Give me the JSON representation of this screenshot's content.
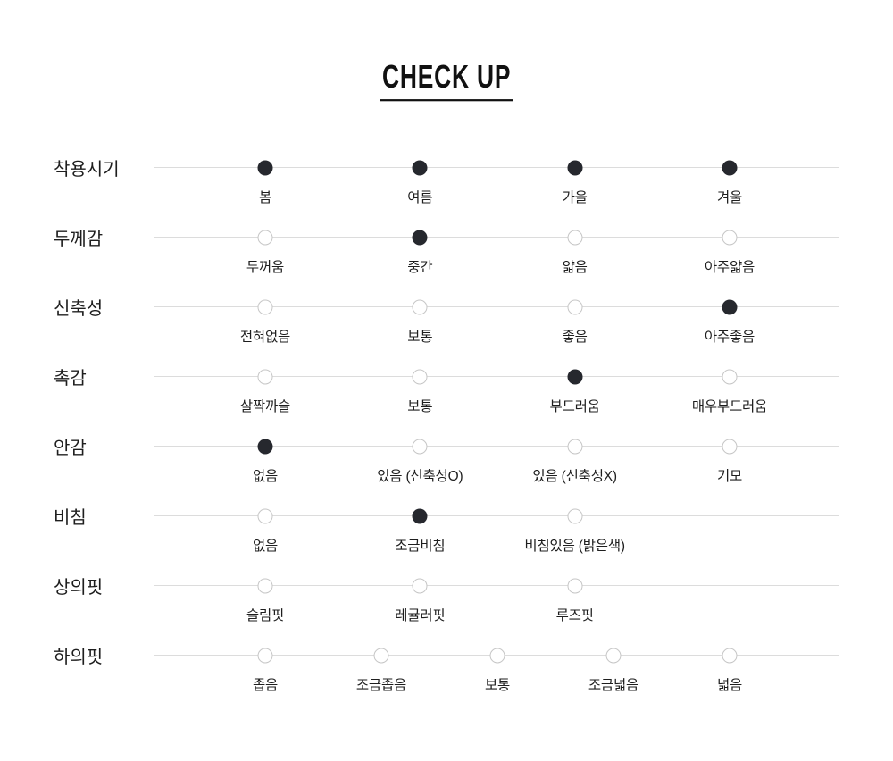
{
  "title": "CHECK UP",
  "colors": {
    "selected_dot": "#26282e",
    "unselected_dot_border": "#c6c6c6",
    "track_line": "#dcdcdc"
  },
  "chart_data": {
    "type": "table",
    "title": "CHECK UP",
    "description": "Product attribute check-up scale: each attribute row has option dots, filled dot = applies/selected",
    "rows": [
      {
        "label": "착용시기",
        "grid": 4,
        "options": [
          {
            "text": "봄",
            "selected": true
          },
          {
            "text": "여름",
            "selected": true
          },
          {
            "text": "가을",
            "selected": true
          },
          {
            "text": "겨울",
            "selected": true
          }
        ]
      },
      {
        "label": "두께감",
        "grid": 4,
        "options": [
          {
            "text": "두꺼움",
            "selected": false
          },
          {
            "text": "중간",
            "selected": true
          },
          {
            "text": "얇음",
            "selected": false
          },
          {
            "text": "아주얇음",
            "selected": false
          }
        ]
      },
      {
        "label": "신축성",
        "grid": 4,
        "options": [
          {
            "text": "전혀없음",
            "selected": false
          },
          {
            "text": "보통",
            "selected": false
          },
          {
            "text": "좋음",
            "selected": false
          },
          {
            "text": "아주좋음",
            "selected": true
          }
        ]
      },
      {
        "label": "촉감",
        "grid": 4,
        "options": [
          {
            "text": "살짝까슬",
            "selected": false
          },
          {
            "text": "보통",
            "selected": false
          },
          {
            "text": "부드러움",
            "selected": true
          },
          {
            "text": "매우부드러움",
            "selected": false
          }
        ]
      },
      {
        "label": "안감",
        "grid": 4,
        "options": [
          {
            "text": "없음",
            "selected": true
          },
          {
            "text": "있음 (신축성O)",
            "selected": false
          },
          {
            "text": "있음 (신축성X)",
            "selected": false
          },
          {
            "text": "기모",
            "selected": false
          }
        ]
      },
      {
        "label": "비침",
        "grid": 4,
        "options": [
          {
            "text": "없음",
            "selected": false
          },
          {
            "text": "조금비침",
            "selected": true
          },
          {
            "text": "비침있음 (밝은색)",
            "selected": false
          }
        ]
      },
      {
        "label": "상의핏",
        "grid": 4,
        "options": [
          {
            "text": "슬림핏",
            "selected": false
          },
          {
            "text": "레귤러핏",
            "selected": false
          },
          {
            "text": "루즈핏",
            "selected": false
          }
        ]
      },
      {
        "label": "하의핏",
        "grid": 5,
        "options": [
          {
            "text": "좁음",
            "selected": false
          },
          {
            "text": "조금좁음",
            "selected": false
          },
          {
            "text": "보통",
            "selected": false
          },
          {
            "text": "조금넓음",
            "selected": false
          },
          {
            "text": "넓음",
            "selected": false
          }
        ]
      }
    ]
  }
}
